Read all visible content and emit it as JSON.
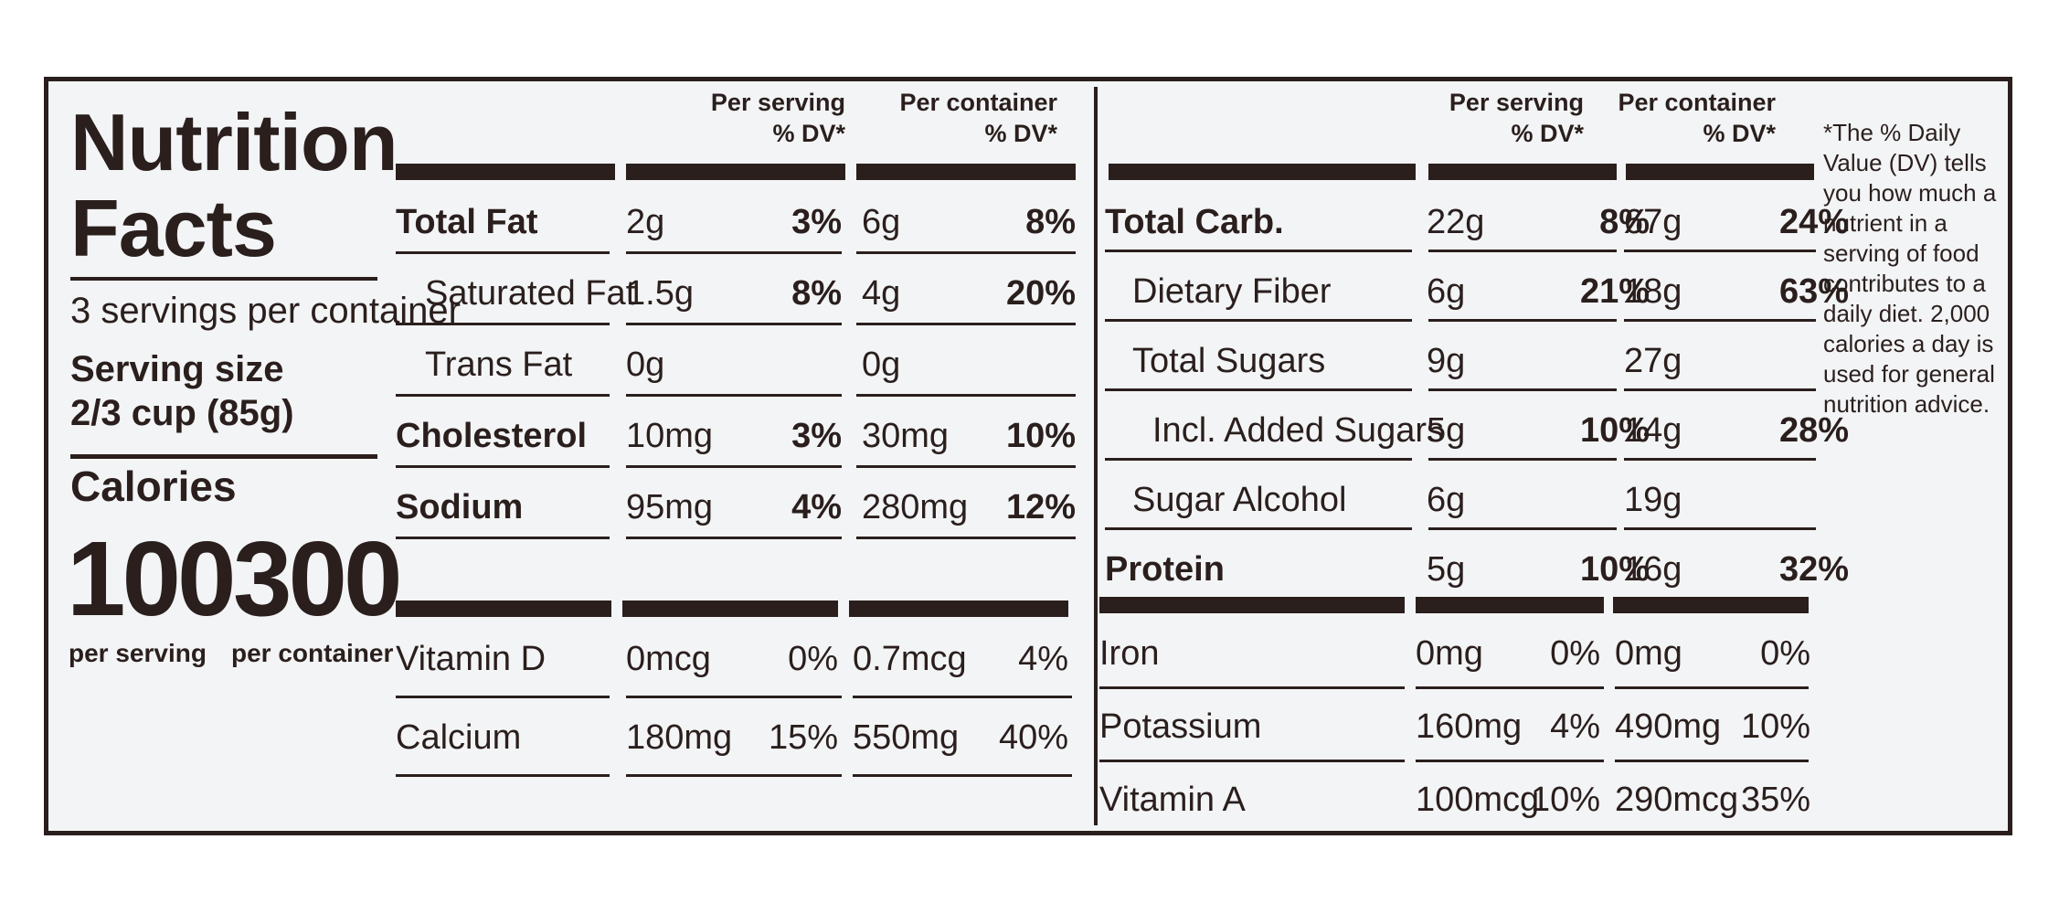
{
  "label": {
    "title_line1": "Nutrition",
    "title_line2": "Facts",
    "servings_per_container": "3 servings per container",
    "serving_size_label": "Serving size",
    "serving_size_value": "2/3 cup (85g)",
    "calories_label": "Calories",
    "calories_per_serving": "100",
    "calories_per_container": "300",
    "per_serving_caption": "per serving",
    "per_container_caption": "per container"
  },
  "headers": {
    "per_serving_line1": "Per serving",
    "per_serving_line2": "% DV*",
    "per_container_line1": "Per container",
    "per_container_line2": "% DV*"
  },
  "left_rows": [
    {
      "name": "Total Fat",
      "bold": true,
      "sv": "2g",
      "sdv": "3%",
      "cv": "6g",
      "cdv": "8%"
    },
    {
      "name": "Saturated Fat",
      "bold": false,
      "sv": "1.5g",
      "sdv": "8%",
      "cv": "4g",
      "cdv": "20%"
    },
    {
      "name": "Trans Fat",
      "bold": false,
      "sv": "0g",
      "sdv": "",
      "cv": "0g",
      "cdv": ""
    },
    {
      "name": "Cholesterol",
      "bold": true,
      "sv": "10mg",
      "sdv": "3%",
      "cv": "30mg",
      "cdv": "10%"
    },
    {
      "name": "Sodium",
      "bold": true,
      "sv": "95mg",
      "sdv": "4%",
      "cv": "280mg",
      "cdv": "12%"
    }
  ],
  "left_micro": [
    {
      "name": "Vitamin D",
      "sv": "0mcg",
      "sdv": "0%",
      "cv": "0.7mcg",
      "cdv": "4%"
    },
    {
      "name": "Calcium",
      "sv": "180mg",
      "sdv": "15%",
      "cv": "550mg",
      "cdv": "40%"
    }
  ],
  "right_rows": [
    {
      "name": "Total Carb.",
      "bold": true,
      "sv": "22g",
      "sdv": "8%",
      "cv": "67g",
      "cdv": "24%"
    },
    {
      "name": "Dietary Fiber",
      "bold": false,
      "sv": "6g",
      "sdv": "21%",
      "cv": "18g",
      "cdv": "63%"
    },
    {
      "name": "Total Sugars",
      "bold": false,
      "sv": "9g",
      "sdv": "",
      "cv": "27g",
      "cdv": ""
    },
    {
      "name": "Incl. Added Sugars",
      "bold": false,
      "sv": "5g",
      "sdv": "10%",
      "cv": "14g",
      "cdv": "28%"
    },
    {
      "name": "Sugar Alcohol",
      "bold": false,
      "sv": "6g",
      "sdv": "",
      "cv": "19g",
      "cdv": ""
    },
    {
      "name": "Protein",
      "bold": true,
      "sv": "5g",
      "sdv": "10%",
      "cv": "16g",
      "cdv": "32%"
    }
  ],
  "right_micro": [
    {
      "name": "Iron",
      "sv": "0mg",
      "sdv": "0%",
      "cv": "0mg",
      "cdv": "0%"
    },
    {
      "name": "Potassium",
      "sv": "160mg",
      "sdv": "4%",
      "cv": "490mg",
      "cdv": "10%"
    },
    {
      "name": "Vitamin A",
      "sv": "100mcg",
      "sdv": "10%",
      "cv": "290mcg",
      "cdv": "35%"
    }
  ],
  "footnote": "*The % Daily Value (DV) tells you how much a nutrient in a serving of food contributes to a daily diet. 2,000 calories a day is used for general nutrition advice."
}
